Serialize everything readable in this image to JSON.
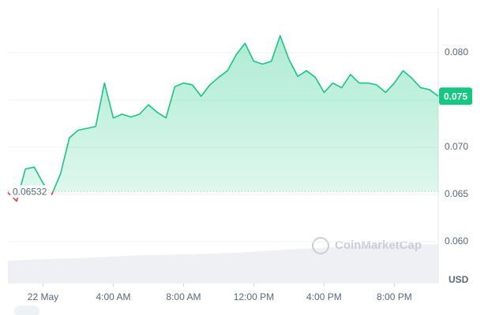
{
  "chart_data": {
    "type": "line",
    "x": [
      -2,
      -1.5,
      -1,
      -0.5,
      0,
      0.5,
      1,
      1.5,
      2,
      2.5,
      3,
      3.5,
      4,
      4.5,
      5,
      5.5,
      6,
      6.5,
      7,
      7.5,
      8,
      8.5,
      9,
      9.5,
      10,
      10.5,
      11,
      11.5,
      12,
      12.5,
      13,
      13.5,
      14,
      14.5,
      15,
      15.5,
      16,
      16.5,
      17,
      17.5,
      18,
      18.5,
      19,
      19.5,
      20,
      20.5,
      21,
      21.5,
      22,
      22.5
    ],
    "series": [
      {
        "color": "#16c784",
        "below_color": "#ea3943",
        "values": [
          0.0652,
          0.0643,
          0.0677,
          0.0679,
          0.0662,
          0.065,
          0.0672,
          0.071,
          0.0718,
          0.072,
          0.0722,
          0.0768,
          0.0731,
          0.0735,
          0.0732,
          0.0735,
          0.0745,
          0.0737,
          0.0731,
          0.0764,
          0.0768,
          0.0766,
          0.0754,
          0.0766,
          0.0774,
          0.0781,
          0.0798,
          0.081,
          0.0791,
          0.0788,
          0.0791,
          0.0818,
          0.0793,
          0.0775,
          0.0781,
          0.0774,
          0.0758,
          0.0768,
          0.0763,
          0.0777,
          0.0768,
          0.0768,
          0.0766,
          0.0758,
          0.0768,
          0.0781,
          0.0773,
          0.0763,
          0.0761,
          0.0754
        ]
      }
    ],
    "baseline": 0.06532,
    "current_price": {
      "value": 0.0754,
      "label": "0.075"
    },
    "xlim": [
      -2,
      22.5
    ],
    "xticks": [
      {
        "value": 0,
        "label": "22 May"
      },
      {
        "value": 4,
        "label": "4:00 AM"
      },
      {
        "value": 8,
        "label": "8:00 AM"
      },
      {
        "value": 12,
        "label": "12:00 PM"
      },
      {
        "value": 16,
        "label": "4:00 PM"
      },
      {
        "value": 20,
        "label": "8:00 PM"
      }
    ],
    "ylim": [
      0.05558,
      0.08475
    ],
    "yticks": [
      {
        "value": 0.06,
        "label": "0.060"
      },
      0.065,
      {
        "value": 0.07,
        "label": "0.070"
      },
      0.075,
      {
        "value": 0.08,
        "label": "0.080"
      }
    ],
    "currency": "USD",
    "watermark": "CoinMarketCap",
    "grid": true
  }
}
